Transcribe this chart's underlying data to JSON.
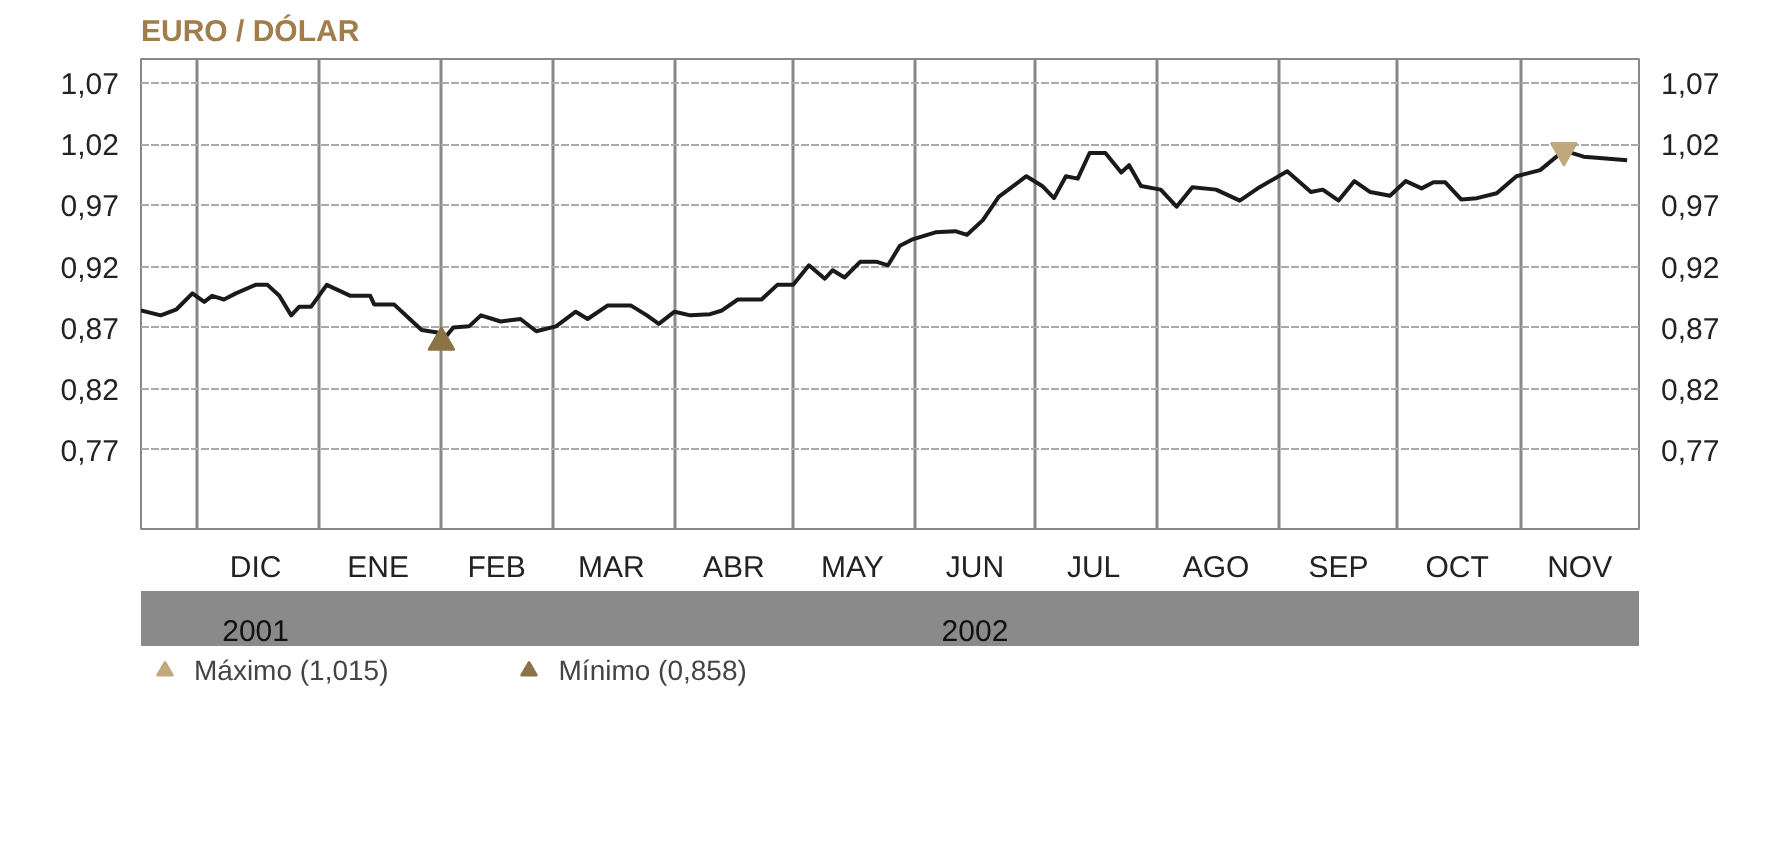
{
  "chart_data": {
    "type": "line",
    "title": "EURO / DÓLAR",
    "xlim": [
      "2001-11-17",
      "2002-12-01"
    ],
    "xticks": [
      {
        "value": "2001-12-01",
        "label": null
      },
      {
        "value": "2001-12-16",
        "label": "DIC"
      },
      {
        "value": "2002-01-01",
        "label": null
      },
      {
        "value": "2002-01-16",
        "label": "ENE"
      },
      {
        "value": "2002-02-01",
        "label": null
      },
      {
        "value": "2002-02-15",
        "label": "FEB"
      },
      {
        "value": "2002-03-01",
        "label": null
      },
      {
        "value": "2002-03-16",
        "label": "MAR"
      },
      {
        "value": "2002-04-01",
        "label": null
      },
      {
        "value": "2002-04-16",
        "label": "ABR"
      },
      {
        "value": "2002-05-01",
        "label": null
      },
      {
        "value": "2002-05-16",
        "label": "MAY"
      },
      {
        "value": "2002-06-01",
        "label": null
      },
      {
        "value": "2002-06-16",
        "label": "JUN"
      },
      {
        "value": "2002-07-01",
        "label": null
      },
      {
        "value": "2002-07-16",
        "label": "JUL"
      },
      {
        "value": "2002-08-01",
        "label": null
      },
      {
        "value": "2002-08-16",
        "label": "AGO"
      },
      {
        "value": "2002-09-01",
        "label": null
      },
      {
        "value": "2002-09-16",
        "label": "SEP"
      },
      {
        "value": "2002-10-01",
        "label": null
      },
      {
        "value": "2002-10-16",
        "label": "OCT"
      },
      {
        "value": "2002-11-01",
        "label": null
      },
      {
        "value": "2002-11-16",
        "label": "NOV"
      }
    ],
    "x2lim": [
      "2001-11-17",
      "2002-12-01"
    ],
    "x2ticks": [
      {
        "value": "2001-12-16",
        "label": "2001"
      },
      {
        "value": "2002-06-16",
        "label": "2002"
      }
    ],
    "ylim": [
      0.705,
      1.09
    ],
    "yticks": [
      {
        "value": 0.77,
        "label": "0,77"
      },
      {
        "value": 0.82,
        "label": "0,82"
      },
      {
        "value": 0.87,
        "label": "0,87"
      },
      {
        "value": 0.92,
        "label": "0,92"
      },
      {
        "value": 0.97,
        "label": "0,97"
      },
      {
        "value": 1.02,
        "label": "1,02"
      },
      {
        "value": 1.07,
        "label": "1,07"
      }
    ],
    "y2lim": [
      0.705,
      1.09
    ],
    "y2ticks": [
      {
        "value": 0.77,
        "label": "0,77"
      },
      {
        "value": 0.82,
        "label": "0,82"
      },
      {
        "value": 0.87,
        "label": "0,87"
      },
      {
        "value": 0.92,
        "label": "0,92"
      },
      {
        "value": 0.97,
        "label": "0,97"
      },
      {
        "value": 1.02,
        "label": "1,02"
      },
      {
        "value": 1.07,
        "label": "1,07"
      }
    ],
    "grid": true,
    "legend": "bottom",
    "series": [
      {
        "color": "#1a1a1a",
        "x": [
          "2001-11-17",
          "2001-11-22",
          "2001-11-26",
          "2001-11-30",
          "2001-12-03",
          "2001-12-05",
          "2001-12-08",
          "2001-12-11",
          "2001-12-16",
          "2001-12-19",
          "2001-12-22",
          "2001-12-25",
          "2001-12-27",
          "2001-12-30",
          "2002-01-03",
          "2002-01-09",
          "2002-01-14",
          "2002-01-15",
          "2002-01-20",
          "2002-01-24",
          "2002-01-27",
          "2002-01-31",
          "2002-02-01",
          "2002-02-04",
          "2002-02-08",
          "2002-02-11",
          "2002-02-16",
          "2002-02-21",
          "2002-02-25",
          "2002-03-02",
          "2002-03-07",
          "2002-03-10",
          "2002-03-15",
          "2002-03-21",
          "2002-03-25",
          "2002-03-28",
          "2002-04-01",
          "2002-04-05",
          "2002-04-10",
          "2002-04-13",
          "2002-04-17",
          "2002-04-23",
          "2002-04-27",
          "2002-05-01",
          "2002-05-05",
          "2002-05-09",
          "2002-05-11",
          "2002-05-14",
          "2002-05-18",
          "2002-05-22",
          "2002-05-25",
          "2002-05-28",
          "2002-05-31",
          "2002-06-06",
          "2002-06-11",
          "2002-06-14",
          "2002-06-18",
          "2002-06-22",
          "2002-06-29",
          "2002-07-03",
          "2002-07-06",
          "2002-07-09",
          "2002-07-12",
          "2002-07-15",
          "2002-07-19",
          "2002-07-23",
          "2002-07-25",
          "2002-07-28",
          "2002-08-02",
          "2002-08-06",
          "2002-08-10",
          "2002-08-16",
          "2002-08-22",
          "2002-08-27",
          "2002-09-03",
          "2002-09-09",
          "2002-09-12",
          "2002-09-16",
          "2002-09-20",
          "2002-09-24",
          "2002-09-29",
          "2002-10-03",
          "2002-10-07",
          "2002-10-10",
          "2002-10-13",
          "2002-10-17",
          "2002-10-21",
          "2002-10-26",
          "2002-10-31",
          "2002-11-06",
          "2002-11-12",
          "2002-11-17",
          "2002-11-21",
          "2002-11-28"
        ],
        "values": [
          0.884,
          0.88,
          0.885,
          0.898,
          0.891,
          0.896,
          0.893,
          0.898,
          0.905,
          0.905,
          0.896,
          0.88,
          0.887,
          0.887,
          0.905,
          0.896,
          0.896,
          0.889,
          0.889,
          0.877,
          0.868,
          0.866,
          0.858,
          0.87,
          0.871,
          0.88,
          0.875,
          0.877,
          0.867,
          0.871,
          0.883,
          0.877,
          0.888,
          0.888,
          0.88,
          0.873,
          0.883,
          0.88,
          0.881,
          0.884,
          0.893,
          0.893,
          0.905,
          0.905,
          0.921,
          0.91,
          0.917,
          0.911,
          0.924,
          0.924,
          0.921,
          0.937,
          0.942,
          0.948,
          0.949,
          0.946,
          0.958,
          0.977,
          0.994,
          0.986,
          0.976,
          0.994,
          0.992,
          1.013,
          1.013,
          0.997,
          1.003,
          0.986,
          0.983,
          0.969,
          0.985,
          0.983,
          0.974,
          0.985,
          0.998,
          0.981,
          0.983,
          0.974,
          0.99,
          0.981,
          0.978,
          0.99,
          0.984,
          0.989,
          0.989,
          0.975,
          0.976,
          0.98,
          0.994,
          0.999,
          1.015,
          1.01,
          1.009,
          1.007
        ]
      },
      {
        "type": "scatter",
        "name": "Máximo (1,015)",
        "color": "#c0a87c",
        "marker": "triangle",
        "x": [
          "2002-11-12"
        ],
        "values": [
          1.015
        ]
      },
      {
        "type": "scatter",
        "name": "Mínimo (0,858)",
        "color": "#8b7346",
        "marker": "triangle",
        "x": [
          "2002-02-01"
        ],
        "values": [
          0.858
        ]
      }
    ]
  }
}
